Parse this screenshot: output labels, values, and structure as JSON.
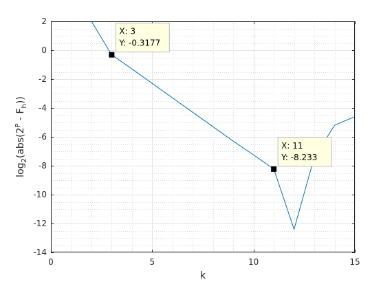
{
  "chart_data": {
    "type": "line",
    "xlabel": "k",
    "ylabel_parts": [
      "log",
      "2",
      "(abs(2",
      "P",
      " - F",
      "h",
      "))"
    ],
    "xlim": [
      0,
      15
    ],
    "ylim": [
      -14,
      2
    ],
    "xticks": [
      0,
      5,
      10,
      15
    ],
    "yticks": [
      2,
      0,
      -2,
      -4,
      -6,
      -8,
      -10,
      -12,
      -14
    ],
    "grid": true,
    "minor_grid": true,
    "line_color": "#0072BD",
    "series": [
      {
        "x": [
          1,
          2,
          3,
          4,
          5,
          6,
          7,
          8,
          9,
          10,
          11,
          12,
          13,
          14,
          15
        ],
        "values": [
          2,
          2,
          -0.3177,
          -1.3,
          -2.3,
          -3.3,
          -4.3,
          -5.3,
          -6.3,
          -7.25,
          -8.233,
          -12.4,
          -7.4,
          -5.2,
          -4.6
        ]
      }
    ],
    "datatips": [
      {
        "x": 3,
        "y": -0.3177,
        "x_label": "X: 3",
        "y_label": "Y: -0.3177"
      },
      {
        "x": 11,
        "y": -8.233,
        "x_label": "X: 11",
        "y_label": "Y: -8.233"
      }
    ]
  }
}
